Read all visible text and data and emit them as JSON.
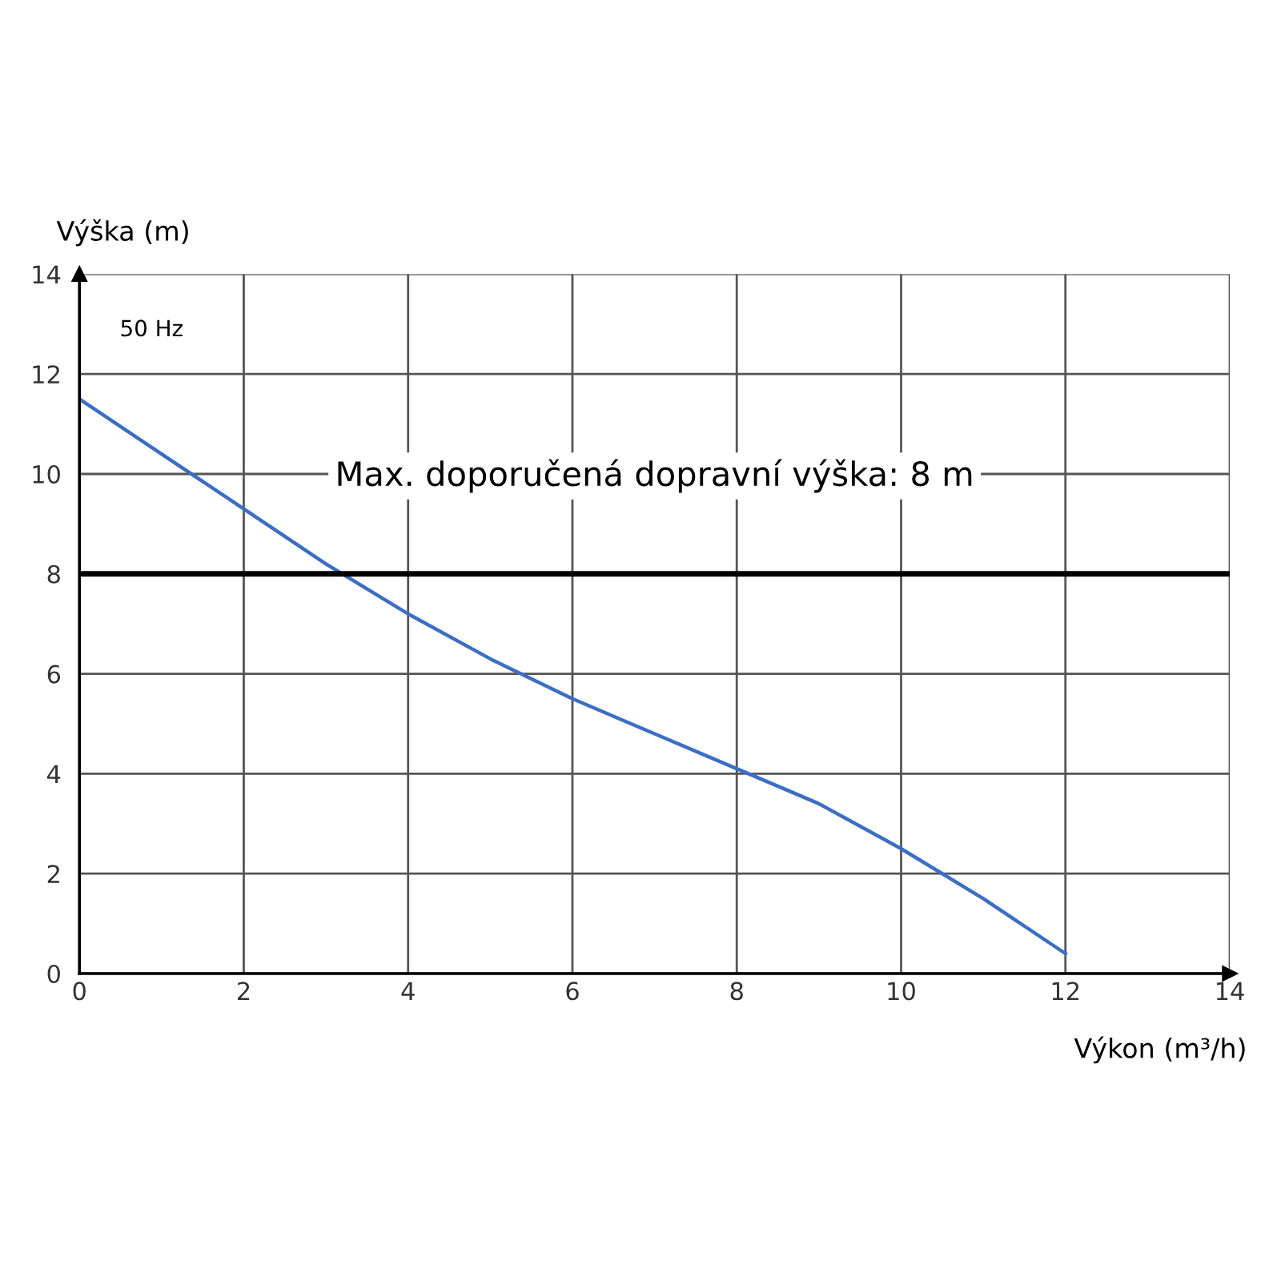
{
  "chart_data": {
    "type": "line",
    "xlabel": "Výkon (m³/h)",
    "ylabel": "Výška (m)",
    "x": [
      0,
      1,
      2,
      3,
      4,
      5,
      6,
      7,
      8,
      9,
      10,
      11,
      12
    ],
    "series": [
      {
        "color": "#3c6ec4",
        "values": [
          11.5,
          10.4,
          9.3,
          8.2,
          7.2,
          6.3,
          5.5,
          4.8,
          4.1,
          3.4,
          2.5,
          1.5,
          0.4
        ]
      }
    ],
    "xlim": [
      0,
      14
    ],
    "ylim": [
      0,
      14
    ],
    "xticks": [
      0,
      2,
      4,
      6,
      8,
      10,
      12,
      14
    ],
    "yticks": [
      0,
      2,
      4,
      6,
      8,
      10,
      12,
      14
    ],
    "grid": true,
    "marker": "none",
    "line_style": "solid",
    "ref_lines": [
      {
        "axis": "y",
        "value": 8,
        "label": "Max. doporučená dopravní výška: 8 m",
        "color": "#000000"
      }
    ],
    "annotations": [
      "50 Hz"
    ]
  }
}
